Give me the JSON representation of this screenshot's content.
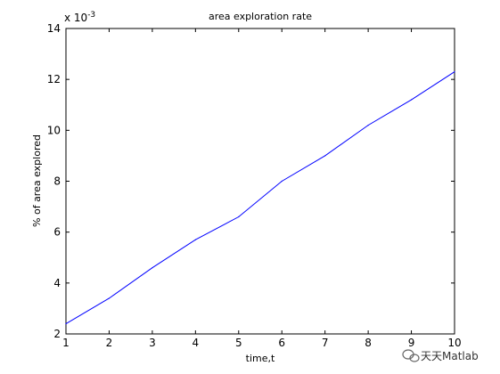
{
  "chart_data": {
    "type": "line",
    "title": "area exploration rate",
    "xlabel": "time,t",
    "ylabel": "% of area explored",
    "y_exponent_label": "x 10",
    "y_exponent_power": "-3",
    "xlim": [
      1,
      10
    ],
    "ylim": [
      2,
      14
    ],
    "x_ticks": [
      "1",
      "2",
      "3",
      "4",
      "5",
      "6",
      "7",
      "8",
      "9",
      "10"
    ],
    "y_ticks": [
      "2",
      "4",
      "6",
      "8",
      "10",
      "12",
      "14"
    ],
    "grid": false,
    "series": [
      {
        "color": "#0000ff",
        "x": [
          1,
          2,
          3,
          4,
          5,
          6,
          7,
          8,
          9,
          10
        ],
        "y": [
          2.4,
          3.4,
          4.6,
          5.7,
          6.6,
          8.0,
          9.0,
          10.2,
          11.2,
          12.3
        ]
      }
    ]
  },
  "watermark": {
    "text": "天天Matlab",
    "icon": "wechat-icon"
  }
}
